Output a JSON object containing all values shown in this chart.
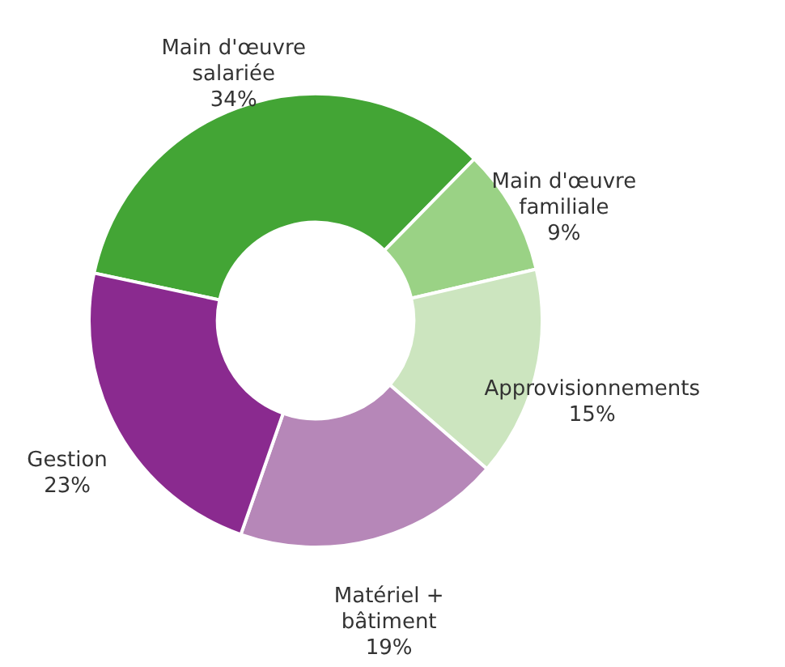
{
  "chart_data": {
    "type": "donut",
    "categories": [
      "Main d'œuvre salariée",
      "Main d'œuvre familiale",
      "Approvisionnements",
      "Matériel + bâtiment",
      "Gestion"
    ],
    "values": [
      34,
      9,
      15,
      19,
      23
    ],
    "colors": [
      "#43a535",
      "#9ad285",
      "#cce5bf",
      "#b687b8",
      "#8a2a8f"
    ],
    "value_labels": [
      "34%",
      "9%",
      "15%",
      "19%",
      "23%"
    ]
  }
}
